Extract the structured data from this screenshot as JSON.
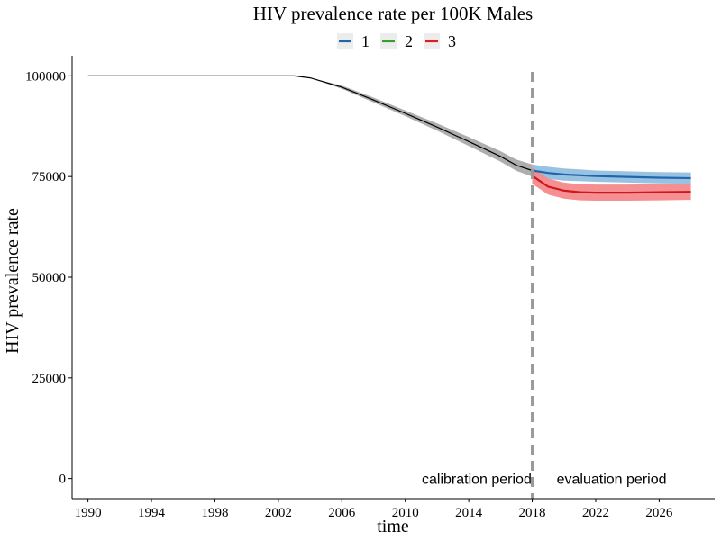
{
  "chart_data": {
    "type": "line",
    "title": "HIV prevalence rate per 100K Males",
    "xlabel": "time",
    "ylabel": "HIV prevalence rate",
    "xlim": [
      1989,
      2029.5
    ],
    "ylim": [
      -5000,
      105000
    ],
    "x_ticks": [
      1990,
      1994,
      1998,
      2002,
      2006,
      2010,
      2014,
      2018,
      2022,
      2026
    ],
    "y_ticks": [
      0,
      25000,
      50000,
      75000,
      100000
    ],
    "grid": false,
    "legend": {
      "position": "top",
      "entries": [
        {
          "label": "1",
          "color": "#2166ac"
        },
        {
          "label": "2",
          "color": "#33a02c"
        },
        {
          "label": "3",
          "color": "#e31a1c"
        }
      ]
    },
    "vline": {
      "x": 2018,
      "style": "dashed",
      "color": "#999999"
    },
    "annotations": [
      {
        "text": "calibration period",
        "x": 2014.5,
        "y": 0
      },
      {
        "text": "evaluation period",
        "x": 2023,
        "y": 0
      }
    ],
    "calibration": {
      "color": "#000000",
      "band_color": "#a0a0a0",
      "x": [
        1990,
        1994,
        1998,
        2002,
        2003,
        2004,
        2006,
        2008,
        2010,
        2012,
        2014,
        2016,
        2017,
        2018
      ],
      "y": [
        100000,
        100000,
        100000,
        100000,
        100000,
        99500,
        97200,
        94000,
        90700,
        87300,
        83700,
        80000,
        77800,
        76500
      ],
      "lower": [
        100000,
        100000,
        100000,
        100000,
        100000,
        99500,
        96800,
        93400,
        90000,
        86400,
        82600,
        78700,
        76400,
        75000
      ],
      "upper": [
        100000,
        100000,
        100000,
        100000,
        100000,
        99500,
        97600,
        94600,
        91400,
        88200,
        84800,
        81300,
        79200,
        78000
      ]
    },
    "series": [
      {
        "name": "1",
        "color": "#2166ac",
        "band_color": "#92bfdf",
        "x": [
          2018,
          2019,
          2020,
          2022,
          2024,
          2026,
          2028
        ],
        "y": [
          76500,
          75900,
          75500,
          75100,
          74900,
          74700,
          74600
        ],
        "lower": [
          75000,
          74400,
          74000,
          73700,
          73500,
          73300,
          73200
        ],
        "upper": [
          78000,
          77400,
          77000,
          76500,
          76300,
          76100,
          76000
        ]
      },
      {
        "name": "3",
        "color": "#cb181d",
        "band_color": "#f5898b",
        "x": [
          2018,
          2019,
          2020,
          2021,
          2022,
          2024,
          2026,
          2028
        ],
        "y": [
          75200,
          72500,
          71500,
          71100,
          71000,
          71000,
          71100,
          71200
        ],
        "lower": [
          73200,
          70500,
          69500,
          69100,
          69000,
          69000,
          69100,
          69200
        ],
        "upper": [
          77200,
          74500,
          73500,
          73100,
          73000,
          73000,
          73100,
          73200
        ]
      }
    ]
  }
}
